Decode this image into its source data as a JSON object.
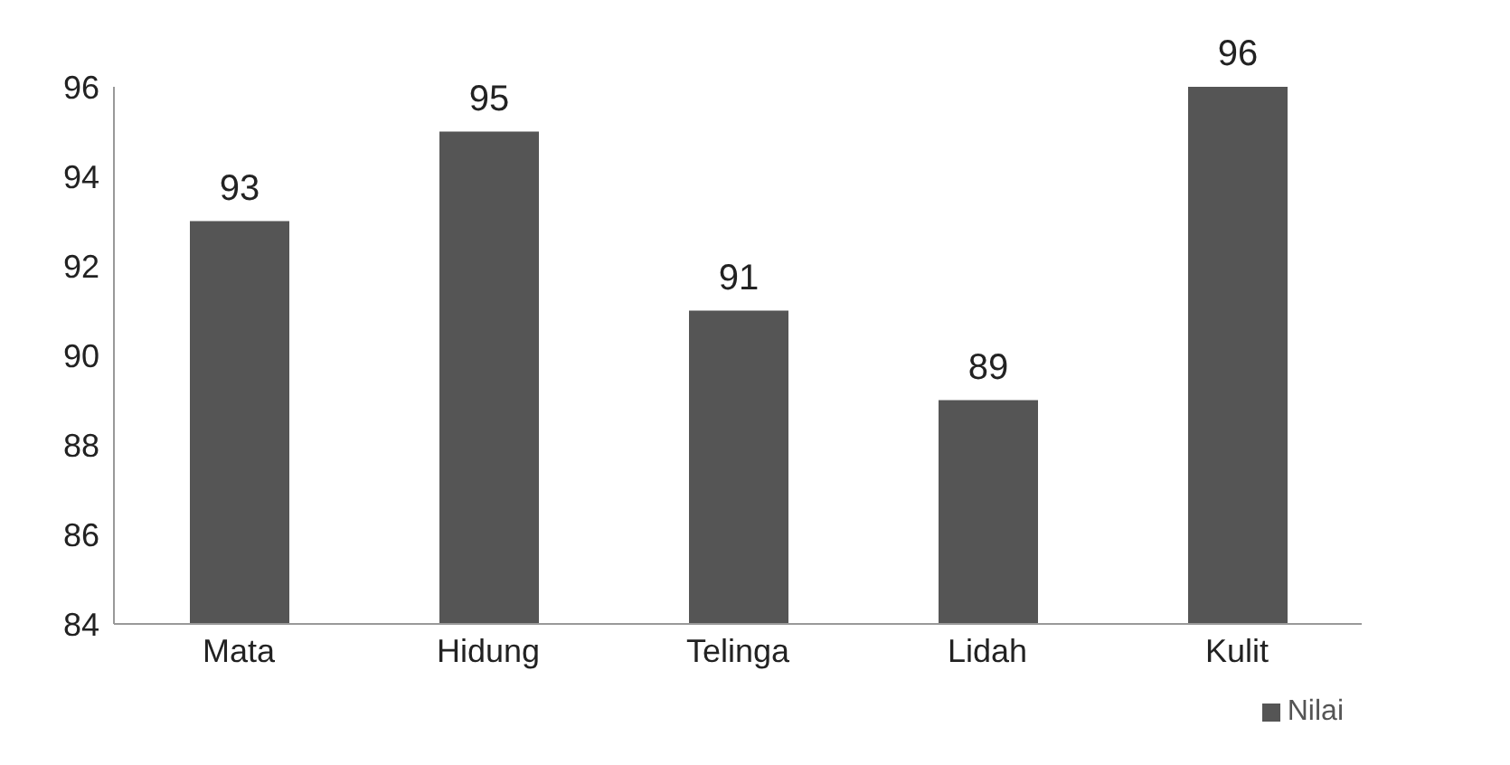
{
  "chart_data": {
    "type": "bar",
    "categories": [
      "Mata",
      "Hidung",
      "Telinga",
      "Lidah",
      "Kulit"
    ],
    "series": [
      {
        "name": "Nilai",
        "color": "#555555",
        "values": [
          93,
          95,
          91,
          89,
          96
        ]
      }
    ],
    "ylim": [
      84,
      96
    ],
    "yticks": [
      84,
      86,
      88,
      90,
      92,
      94,
      96
    ],
    "data_labels": true,
    "legend": "bottom right"
  }
}
